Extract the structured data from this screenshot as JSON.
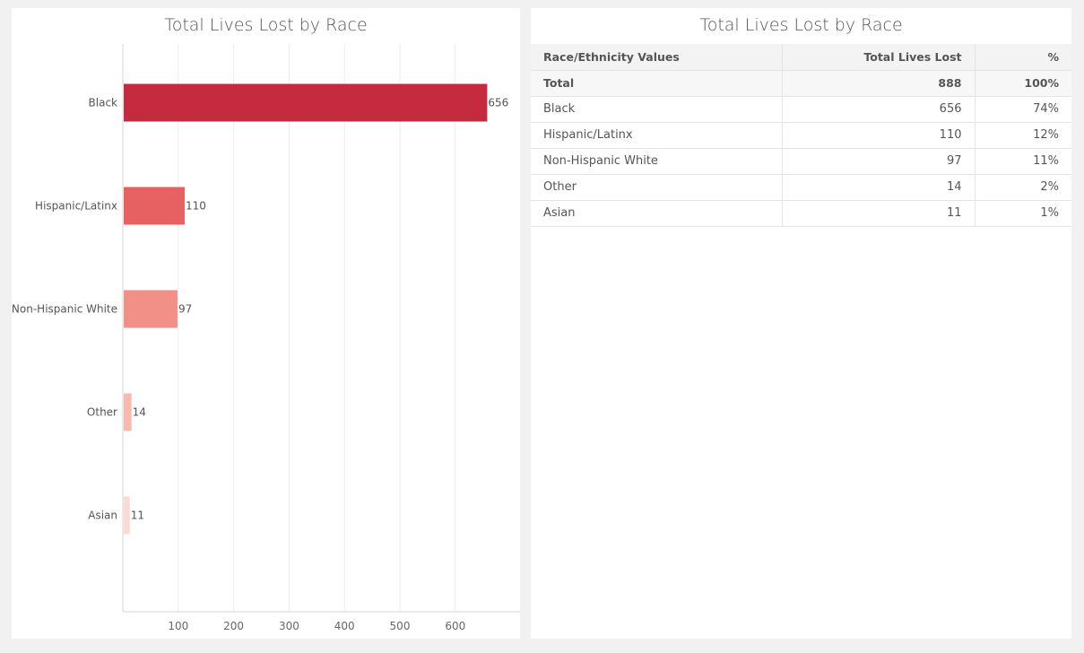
{
  "chart_panel": {
    "title": "Total Lives Lost by Race"
  },
  "chart_data": {
    "type": "bar",
    "orientation": "horizontal",
    "title": "Total Lives Lost by Race",
    "categories": [
      "Black",
      "Hispanic/Latinx",
      "Non-Hispanic White",
      "Other",
      "Asian"
    ],
    "values": [
      656,
      110,
      97,
      14,
      11
    ],
    "colors": [
      "#c62a3f",
      "#e86162",
      "#f28f87",
      "#f9b9ad",
      "#fbdad2"
    ],
    "xlim": [
      0,
      720
    ],
    "xticks": [
      100,
      200,
      300,
      400,
      500,
      600
    ],
    "grid": true,
    "xlabel": "",
    "ylabel": ""
  },
  "table_panel": {
    "title": "Total Lives Lost by Race",
    "headers": [
      "Race/Ethnicity Values",
      "Total Lives Lost",
      "%"
    ],
    "total": [
      "Total",
      "888",
      "100%"
    ],
    "rows": [
      [
        "Black",
        "656",
        "74%"
      ],
      [
        "Hispanic/Latinx",
        "110",
        "12%"
      ],
      [
        "Non-Hispanic White",
        "97",
        "11%"
      ],
      [
        "Other",
        "14",
        "2%"
      ],
      [
        "Asian",
        "11",
        "1%"
      ]
    ]
  }
}
